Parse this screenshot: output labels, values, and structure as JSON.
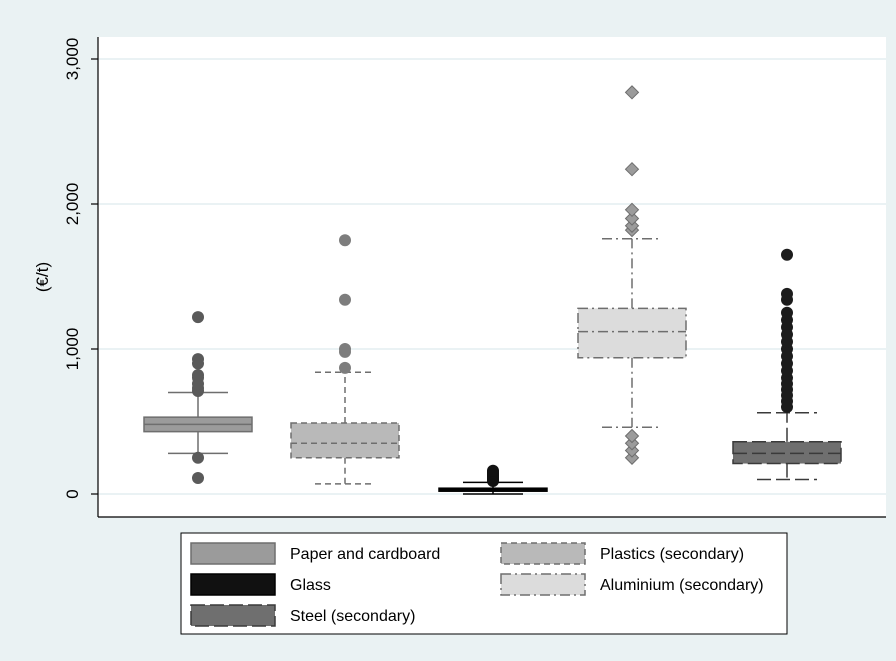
{
  "chart_data": {
    "type": "box",
    "title": "",
    "xlabel": "",
    "ylabel": "(€/t)",
    "ylim": [
      -150,
      3250
    ],
    "yticks": [
      0,
      1000,
      2000,
      3000
    ],
    "ytick_labels": [
      "0",
      "1,000",
      "2,000",
      "3,000"
    ],
    "grid": true,
    "legend_position": "bottom",
    "series": [
      {
        "name": "Paper and cardboard",
        "fill": "#9b9b9b",
        "stroke": "#6e6e6e",
        "median_color": "#6e6e6e",
        "outlier_color": "#5a5a5a",
        "line_style": "solid",
        "marker": "circle",
        "whisker_low": 280,
        "q1": 430,
        "median": 480,
        "q3": 530,
        "whisker_high": 700,
        "outliers": [
          110,
          250,
          710,
          730,
          760,
          800,
          820,
          900,
          930,
          1220
        ]
      },
      {
        "name": "Plastics (secondary)",
        "fill": "#b9b9b9",
        "stroke": "#6e6e6e",
        "median_color": "#6e6e6e",
        "outlier_color": "#7d7d7d",
        "line_style": "dashed",
        "marker": "circle",
        "whisker_low": 70,
        "q1": 250,
        "median": 350,
        "q3": 490,
        "whisker_high": 840,
        "outliers": [
          870,
          980,
          1000,
          1340,
          1750
        ]
      },
      {
        "name": "Glass",
        "fill": "#111111",
        "stroke": "#000000",
        "median_color": "#000000",
        "outlier_color": "#111111",
        "line_style": "solid",
        "marker": "circle",
        "whisker_low": 0,
        "q1": 20,
        "median": 30,
        "q3": 40,
        "whisker_high": 80,
        "outliers": [
          90,
          100,
          110,
          120,
          130,
          140,
          150,
          160
        ]
      },
      {
        "name": "Aluminium (secondary)",
        "fill": "#dcdcdc",
        "stroke": "#6e6e6e",
        "median_color": "#6e6e6e",
        "outlier_color": "#9b9b9b",
        "line_style": "dashdot",
        "marker": "diamond",
        "whisker_low": 460,
        "q1": 940,
        "median": 1120,
        "q3": 1280,
        "whisker_high": 1760,
        "outliers": [
          250,
          300,
          350,
          400,
          1820,
          1850,
          1900,
          1960,
          2240,
          2770
        ]
      },
      {
        "name": "Steel (secondary)",
        "fill": "#6f6f6f",
        "stroke": "#3a3a3a",
        "median_color": "#3a3a3a",
        "outlier_color": "#1c1c1c",
        "line_style": "longdash",
        "marker": "circle",
        "whisker_low": 100,
        "q1": 210,
        "median": 280,
        "q3": 360,
        "whisker_high": 560,
        "outliers": [
          600,
          640,
          680,
          720,
          760,
          800,
          850,
          900,
          950,
          1000,
          1050,
          1100,
          1150,
          1200,
          1250,
          1340,
          1380,
          1650
        ]
      }
    ]
  }
}
